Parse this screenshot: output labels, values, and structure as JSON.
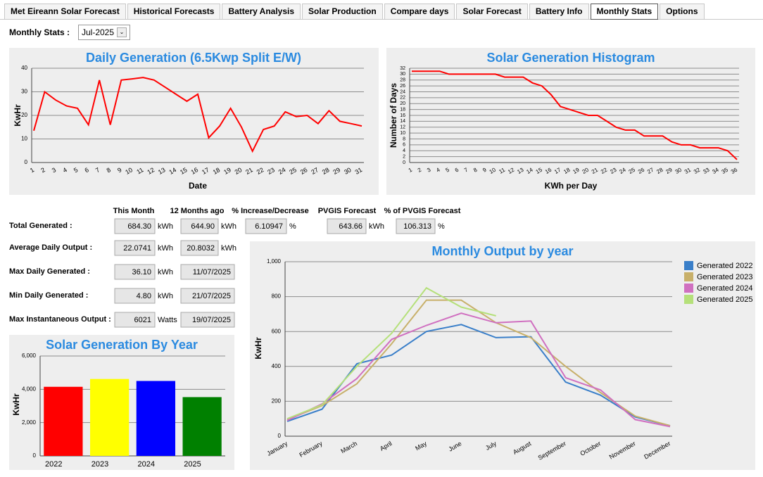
{
  "tabs": [
    "Met Eireann Solar Forecast",
    "Historical Forecasts",
    "Battery Analysis",
    "Solar Production",
    "Compare days",
    "Solar Forecast",
    "Battery Info",
    "Monthly Stats",
    "Options"
  ],
  "active_tab": 7,
  "selector": {
    "label": "Monthly Stats :",
    "value": "Jul-2025"
  },
  "stats": {
    "headers": [
      "This Month",
      "12 Months ago",
      "% Increase/Decrease",
      "PVGIS Forecast",
      "% of PVGIS Forecast"
    ],
    "rows": [
      {
        "label": "Total Generated :",
        "cells": [
          {
            "value": "684.30",
            "unit": "kWh"
          },
          {
            "value": "644.90",
            "unit": "kWh"
          },
          {
            "value": "6.10947",
            "unit": "%"
          },
          {
            "value": "643.66",
            "unit": "kWh"
          },
          {
            "value": "106.313",
            "unit": "%"
          }
        ]
      },
      {
        "label": "Average Daily Output :",
        "cells": [
          {
            "value": "22.0741",
            "unit": "kWh"
          },
          {
            "value": "20.8032",
            "unit": "kWh"
          }
        ]
      },
      {
        "label": "Max Daily Generated :",
        "cells": [
          {
            "value": "36.10",
            "unit": "kWh"
          },
          {
            "value": "11/07/2025"
          }
        ]
      },
      {
        "label": "Min Daily Generated :",
        "cells": [
          {
            "value": "4.80",
            "unit": "kWh"
          },
          {
            "value": "21/07/2025"
          }
        ]
      },
      {
        "label": "Max Instantaneous Output :",
        "cells": [
          {
            "value": "6021",
            "unit": "Watts"
          },
          {
            "value": "19/07/2025"
          }
        ]
      }
    ]
  },
  "chart_data": [
    {
      "type": "line",
      "title": "Daily Generation (6.5Kwp Split E/W)",
      "x_label": "Date",
      "y_label": "KwHr",
      "categories": [
        "1",
        "2",
        "3",
        "4",
        "5",
        "6",
        "7",
        "8",
        "9",
        "10",
        "11",
        "12",
        "13",
        "14",
        "15",
        "16",
        "17",
        "18",
        "19",
        "20",
        "21",
        "22",
        "23",
        "24",
        "25",
        "26",
        "27",
        "28",
        "29",
        "30",
        "31"
      ],
      "series": [
        {
          "color": "#ff0000",
          "values": [
            13.5,
            30,
            26.5,
            24,
            23,
            16,
            35,
            16,
            35,
            35.5,
            36.1,
            35,
            32,
            29,
            26,
            29,
            10.5,
            15.5,
            23,
            15,
            4.8,
            14,
            15.5,
            21.5,
            19.5,
            20,
            16.5,
            22,
            17.5,
            16.5,
            15.5
          ]
        }
      ],
      "ylim": [
        0,
        40
      ],
      "yticks": [
        0,
        10,
        20,
        30,
        40
      ],
      "grid": true
    },
    {
      "type": "line",
      "title": "Solar Generation Histogram",
      "x_label": "KWh per Day",
      "y_label": "Number of Days",
      "categories": [
        "1",
        "2",
        "3",
        "4",
        "5",
        "6",
        "7",
        "8",
        "9",
        "10",
        "11",
        "12",
        "13",
        "14",
        "15",
        "16",
        "17",
        "18",
        "19",
        "20",
        "21",
        "22",
        "23",
        "24",
        "25",
        "26",
        "27",
        "28",
        "29",
        "30",
        "31",
        "32",
        "33",
        "34",
        "35",
        "36"
      ],
      "series": [
        {
          "color": "#ff0000",
          "values": [
            31,
            31,
            31,
            31,
            30,
            30,
            30,
            30,
            30,
            30,
            29,
            29,
            29,
            27,
            26,
            23,
            19,
            18,
            17,
            16,
            16,
            14,
            12,
            11,
            11,
            9,
            9,
            9,
            7,
            6,
            6,
            5,
            5,
            5,
            4,
            1
          ]
        }
      ],
      "ylim": [
        0,
        32
      ],
      "yticks": [
        0,
        2,
        4,
        6,
        8,
        10,
        12,
        14,
        16,
        18,
        20,
        22,
        24,
        26,
        28,
        30,
        32
      ],
      "grid": true
    },
    {
      "type": "bar",
      "title": "Solar Generation By Year",
      "y_label": "KwHr",
      "categories": [
        "2022",
        "2023",
        "2024",
        "2025"
      ],
      "values": [
        4150,
        4620,
        4500,
        3530
      ],
      "colors": [
        "#ff0000",
        "#ffff00",
        "#0000ff",
        "#008000"
      ],
      "ylim": [
        0,
        6000
      ],
      "yticks": [
        0,
        {
          "value": 2000,
          "label": "2,000"
        },
        {
          "value": 4000,
          "label": "4,000"
        },
        {
          "value": 6000,
          "label": "6,000"
        }
      ],
      "grid": true
    },
    {
      "type": "line",
      "title": "Monthly Output by year",
      "y_label": "KwHr",
      "categories": [
        "January",
        "February",
        "March",
        "April",
        "May",
        "June",
        "July",
        "August",
        "September",
        "October",
        "November",
        "December"
      ],
      "series": [
        {
          "name": "Generated 2022",
          "color": "#3a7fc9",
          "values": [
            85,
            155,
            415,
            465,
            600,
            640,
            565,
            570,
            310,
            235,
            110,
            60
          ]
        },
        {
          "name": "Generated 2023",
          "color": "#c8b06a",
          "values": [
            95,
            175,
            300,
            530,
            780,
            780,
            650,
            565,
            400,
            250,
            115,
            60
          ]
        },
        {
          "name": "Generated 2024",
          "color": "#d070c0",
          "values": [
            90,
            185,
            330,
            555,
            635,
            705,
            650,
            660,
            335,
            265,
            95,
            55
          ]
        },
        {
          "name": "Generated 2025",
          "color": "#b5e07a",
          "values": [
            100,
            180,
            400,
            590,
            850,
            740,
            690,
            null,
            null,
            null,
            null,
            null
          ]
        }
      ],
      "ylim": [
        0,
        1000
      ],
      "yticks": [
        0,
        200,
        400,
        600,
        800,
        {
          "value": 1000,
          "label": "1,000"
        }
      ],
      "grid": true,
      "legend": "right"
    }
  ]
}
